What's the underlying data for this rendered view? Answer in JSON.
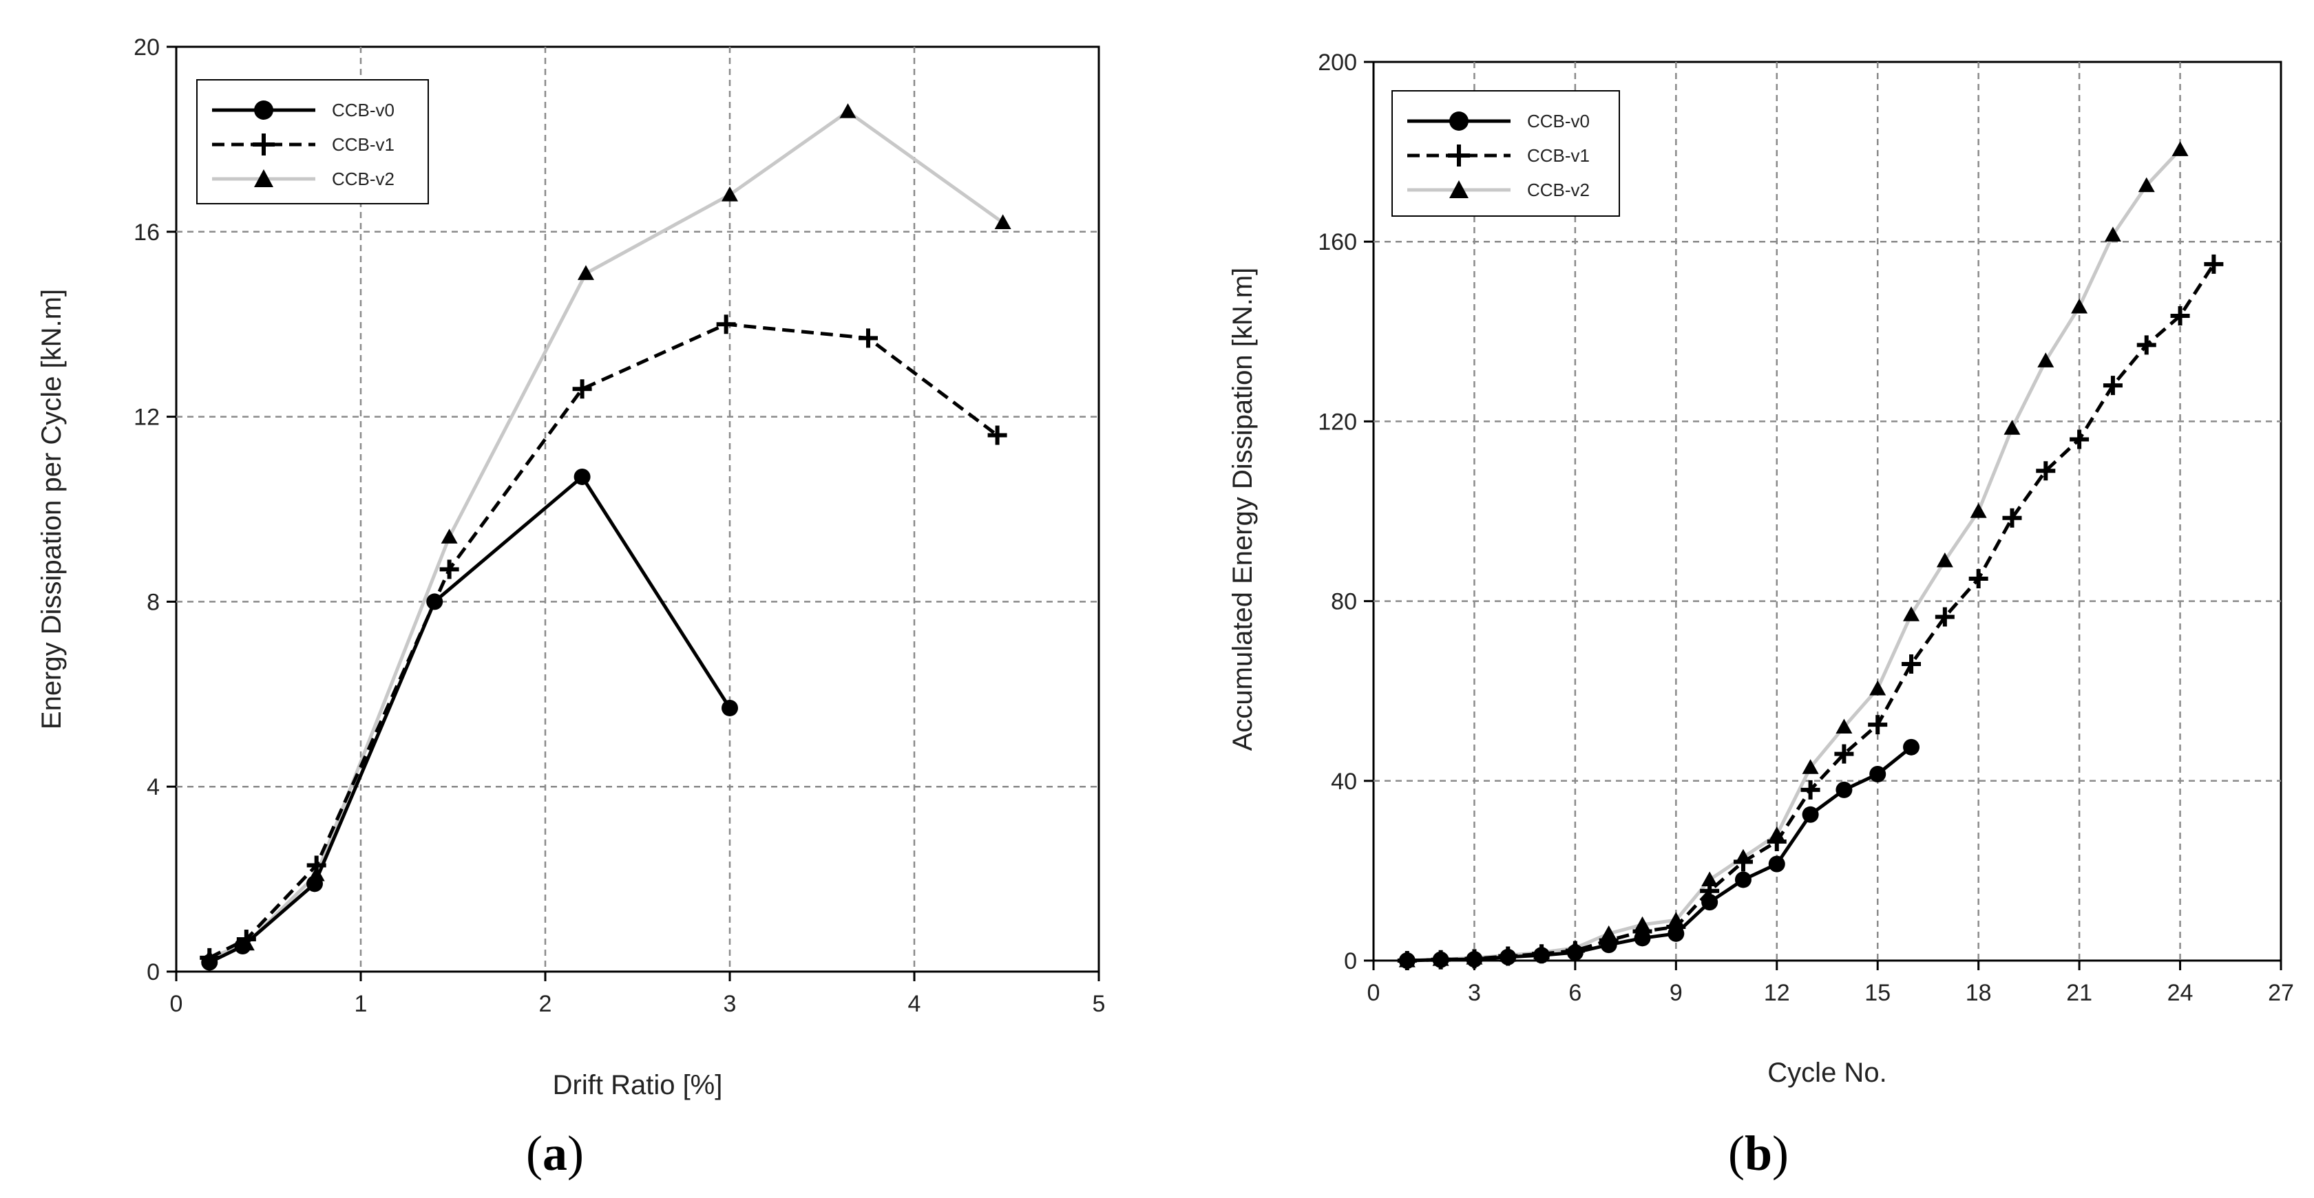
{
  "chart_data": [
    {
      "type": "line",
      "panel_label": [
        "(",
        "a",
        ")"
      ],
      "xlabel": "Drift Ratio [%]",
      "ylabel": "Energy Dissipation per Cycle [kN.m]",
      "xlim": [
        0,
        5
      ],
      "ylim": [
        0,
        20
      ],
      "xticks": [
        0,
        1,
        2,
        3,
        4,
        5
      ],
      "yticks": [
        0,
        4,
        8,
        12,
        16,
        20
      ],
      "grid": true,
      "legend": "top-left",
      "series": [
        {
          "name": "CCB-v0",
          "style": "solid",
          "color": "#000000",
          "marker": "circle",
          "x": [
            0.18,
            0.36,
            0.75,
            1.4,
            2.2,
            3.0
          ],
          "y": [
            0.2,
            0.55,
            1.9,
            8.0,
            10.7,
            5.7
          ]
        },
        {
          "name": "CCB-v1",
          "style": "dashed",
          "color": "#000000",
          "marker": "plus",
          "x": [
            0.18,
            0.38,
            0.76,
            1.48,
            2.2,
            2.98,
            3.75,
            4.45
          ],
          "y": [
            0.3,
            0.7,
            2.3,
            8.7,
            12.6,
            14.0,
            13.7,
            11.6
          ]
        },
        {
          "name": "CCB-v2",
          "style": "solid",
          "color": "#c8c8c8",
          "marker": "triangle",
          "x": [
            0.18,
            0.38,
            0.76,
            1.48,
            2.22,
            3.0,
            3.64,
            4.48
          ],
          "y": [
            0.3,
            0.6,
            2.1,
            9.4,
            15.1,
            16.8,
            18.6,
            16.2
          ]
        }
      ]
    },
    {
      "type": "line",
      "panel_label": [
        "(",
        "b",
        ")"
      ],
      "xlabel": "Cycle No.",
      "ylabel": "Accumulated Energy Dissipation [kN.m]",
      "xlim": [
        0,
        27
      ],
      "ylim": [
        0,
        200
      ],
      "xticks": [
        0,
        3,
        6,
        9,
        12,
        15,
        18,
        21,
        24,
        27
      ],
      "yticks": [
        0,
        40,
        80,
        120,
        160,
        200
      ],
      "grid": true,
      "legend": "top-left",
      "series": [
        {
          "name": "CCB-v0",
          "style": "solid",
          "color": "#000000",
          "marker": "circle",
          "x": [
            1,
            2,
            3,
            4,
            5,
            6,
            7,
            8,
            9,
            10,
            11,
            12,
            13,
            14,
            15,
            16
          ],
          "y": [
            0,
            0.2,
            0.3,
            0.8,
            1.2,
            1.8,
            3.5,
            5,
            6,
            13,
            18,
            21.5,
            32.5,
            38,
            41.5,
            47.5
          ]
        },
        {
          "name": "CCB-v1",
          "style": "dashed",
          "color": "#000000",
          "marker": "plus",
          "x": [
            1,
            2,
            3,
            4,
            5,
            6,
            7,
            8,
            9,
            10,
            11,
            12,
            13,
            14,
            15,
            16,
            17,
            18,
            19,
            20,
            21,
            22,
            23,
            24,
            25
          ],
          "y": [
            0,
            0.2,
            0.4,
            1,
            1.5,
            2.2,
            4.5,
            6.5,
            7.5,
            15.5,
            22,
            26.5,
            38,
            46,
            52.5,
            66,
            76.5,
            85,
            98.5,
            109,
            116,
            128,
            137,
            143.5,
            155
          ]
        },
        {
          "name": "CCB-v2",
          "style": "solid",
          "color": "#c8c8c8",
          "marker": "triangle",
          "x": [
            1,
            2,
            3,
            4,
            5,
            6,
            7,
            8,
            9,
            10,
            11,
            12,
            13,
            14,
            15,
            16,
            17,
            18,
            19,
            20,
            21,
            22,
            23,
            24
          ],
          "y": [
            0,
            0.3,
            0.6,
            1.2,
            1.8,
            2.8,
            6,
            8,
            9,
            18,
            23,
            28,
            43,
            52,
            60.5,
            77,
            89,
            100,
            118.5,
            133.5,
            145.5,
            161.5,
            172.5,
            180.5
          ]
        }
      ]
    }
  ]
}
